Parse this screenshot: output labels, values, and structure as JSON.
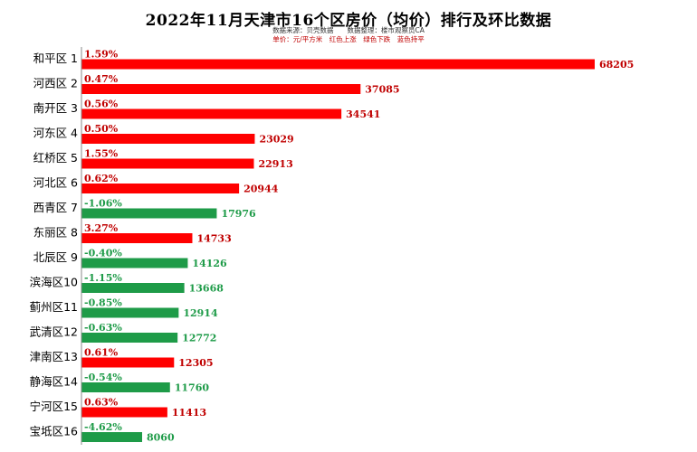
{
  "chart_data": {
    "type": "bar",
    "orientation": "horizontal",
    "title": "2022年11月天津市16个区房价（均价）排行及环比数据",
    "subtitle_source": "数据来源：贝壳数据　　数据整理：楼市观察员CA",
    "subtitle_legend": "单价：元/平方米　红色上涨　绿色下跌　蓝色持平",
    "categories": [
      "和平区 1",
      "河西区 2",
      "南开区 3",
      "河东区 4",
      "红桥区 5",
      "河北区 6",
      "西青区 7",
      "东丽区 8",
      "北辰区 9",
      "滨海区10",
      "蓟州区11",
      "武清区12",
      "津南区13",
      "静海区14",
      "宁河区15",
      "宝坻区16"
    ],
    "values": [
      68205,
      37085,
      34541,
      23029,
      22913,
      20944,
      17976,
      14733,
      14126,
      13668,
      12914,
      12772,
      12305,
      11760,
      11413,
      8060
    ],
    "change_labels": [
      "1.59%",
      "0.47%",
      "0.56%",
      "0.50%",
      "1.55%",
      "0.62%",
      "-1.06%",
      "3.27%",
      "-0.40%",
      "-1.15%",
      "-0.85%",
      "-0.63%",
      "0.61%",
      "-0.54%",
      "0.63%",
      "-4.62%"
    ],
    "change_values": [
      1.59,
      0.47,
      0.56,
      0.5,
      1.55,
      0.62,
      -1.06,
      3.27,
      -0.4,
      -1.15,
      -0.85,
      -0.63,
      0.61,
      -0.54,
      0.63,
      -4.62
    ],
    "xlim": [
      0,
      68205
    ],
    "grid": false,
    "colors": {
      "up": "#ff0000",
      "down": "#1e9b48",
      "up_text": "#c00000",
      "down_text": "#1e9b48"
    }
  }
}
